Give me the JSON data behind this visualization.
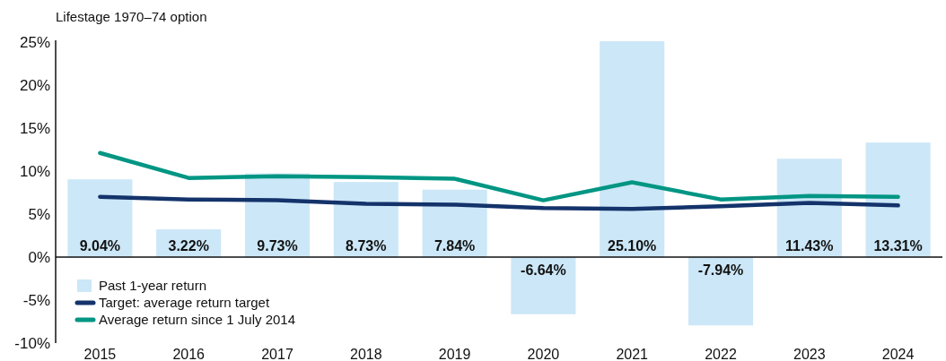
{
  "chart_data": {
    "type": "bar",
    "title": "Lifestage 1970–74 option",
    "categories": [
      "2015",
      "2016",
      "2017",
      "2018",
      "2019",
      "2020",
      "2021",
      "2022",
      "2023",
      "2024"
    ],
    "series": [
      {
        "name": "Past 1-year return",
        "color": "#cce7f7",
        "values": [
          9.04,
          3.22,
          9.73,
          8.73,
          7.84,
          -6.64,
          25.1,
          -7.94,
          11.43,
          13.31
        ],
        "value_labels": [
          "9.04%",
          "3.22%",
          "9.73%",
          "8.73%",
          "7.84%",
          "-6.64%",
          "25.10%",
          "-7.94%",
          "11.43%",
          "13.31%"
        ]
      },
      {
        "name": "Target: average return target",
        "type": "line",
        "color": "#14336b",
        "values": [
          7.0,
          6.7,
          6.6,
          6.2,
          6.1,
          5.7,
          5.6,
          5.9,
          6.3,
          6.0
        ]
      },
      {
        "name": "Average return since 1 July 2014",
        "type": "line",
        "color": "#009683",
        "values": [
          12.1,
          9.2,
          9.4,
          9.3,
          9.1,
          6.6,
          8.7,
          6.7,
          7.1,
          7.0
        ]
      }
    ],
    "ylim": [
      -10,
      25.2
    ],
    "yticks": [
      {
        "value": -10,
        "label": "-10%"
      },
      {
        "value": -5,
        "label": "-5%"
      },
      {
        "value": 0,
        "label": "0%"
      },
      {
        "value": 5,
        "label": "5%"
      },
      {
        "value": 10,
        "label": "10%"
      },
      {
        "value": 15,
        "label": "15%"
      },
      {
        "value": 20,
        "label": "20%"
      },
      {
        "value": 25,
        "label": "25%"
      }
    ],
    "legend": "bottom left",
    "marker": "none",
    "line_style": "solid"
  }
}
